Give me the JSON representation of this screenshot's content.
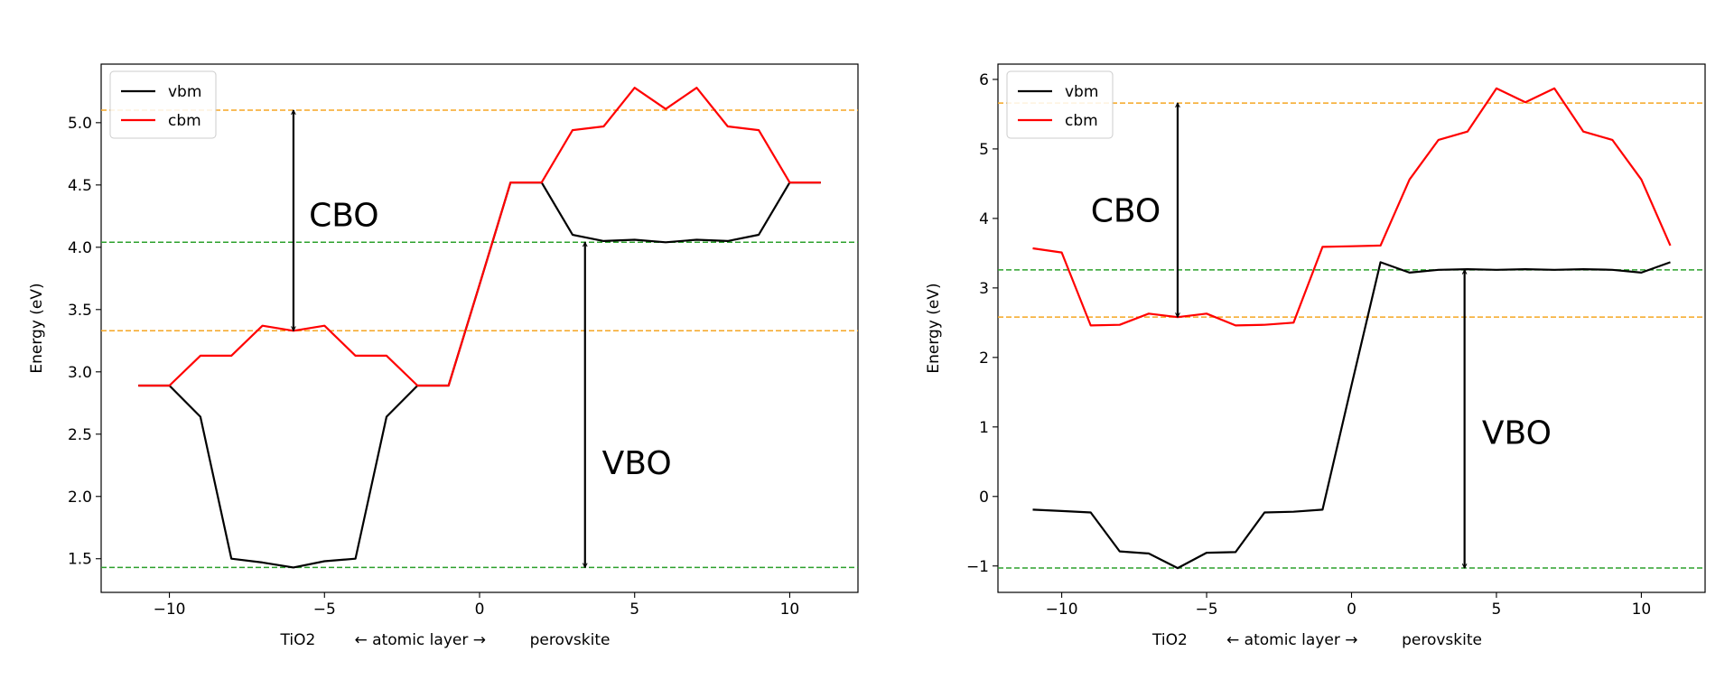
{
  "chart_data": [
    {
      "type": "line",
      "title": "",
      "xlabel": "TiO2        ← atomic layer →         perovskite",
      "ylabel": "Energy (eV)",
      "xlim": [
        -12.2,
        12.2
      ],
      "ylim": [
        1.23,
        5.47
      ],
      "xticks": [
        -10,
        -5,
        0,
        5,
        10
      ],
      "xtick_labels": [
        "−10",
        "−5",
        "0",
        "5",
        "10"
      ],
      "yticks": [
        1.5,
        2.0,
        2.5,
        3.0,
        3.5,
        4.0,
        4.5,
        5.0
      ],
      "ytick_labels": [
        "1.5",
        "2.0",
        "2.5",
        "3.0",
        "3.5",
        "4.0",
        "4.5",
        "5.0"
      ],
      "grid": false,
      "legend": "top-left",
      "x": [
        -11,
        -10,
        -9,
        -8,
        -7,
        -6,
        -5,
        -4,
        -3,
        -2,
        -1,
        0,
        1,
        2,
        3,
        4,
        5,
        6,
        7,
        8,
        9,
        10,
        11
      ],
      "series": [
        {
          "name": "vbm",
          "color": "#000000",
          "values": [
            2.89,
            2.89,
            2.64,
            1.5,
            1.47,
            1.43,
            1.48,
            1.5,
            2.64,
            2.89,
            2.89,
            3.7,
            4.52,
            4.52,
            4.1,
            4.05,
            4.06,
            4.04,
            4.06,
            4.05,
            4.1,
            4.52,
            4.52
          ]
        },
        {
          "name": "cbm",
          "color": "#ff0000",
          "values": [
            2.89,
            2.89,
            3.13,
            3.13,
            3.37,
            3.33,
            3.37,
            3.13,
            3.13,
            2.89,
            2.89,
            3.7,
            4.52,
            4.52,
            4.94,
            4.97,
            5.28,
            5.11,
            5.28,
            4.97,
            4.94,
            4.52,
            4.52
          ]
        }
      ],
      "hlines": [
        {
          "y": 5.1,
          "color": "#f5a623"
        },
        {
          "y": 3.33,
          "color": "#f5a623"
        },
        {
          "y": 4.04,
          "color": "#2ca02c"
        },
        {
          "y": 1.43,
          "color": "#2ca02c"
        }
      ],
      "arrows": [
        {
          "x": -6,
          "y1": 3.33,
          "y2": 5.1
        },
        {
          "x": 3.4,
          "y1": 1.43,
          "y2": 4.04
        }
      ],
      "annotations": [
        {
          "text": "CBO",
          "x": -5.5,
          "y": 4.17
        },
        {
          "text": "VBO",
          "x": 3.95,
          "y": 2.18
        }
      ]
    },
    {
      "type": "line",
      "title": "",
      "xlabel": "TiO2        ← atomic layer →         perovskite",
      "ylabel": "Energy (eV)",
      "xlim": [
        -12.2,
        12.2
      ],
      "ylim": [
        -1.38,
        6.22
      ],
      "xticks": [
        -10,
        -5,
        0,
        5,
        10
      ],
      "xtick_labels": [
        "−10",
        "−5",
        "0",
        "5",
        "10"
      ],
      "yticks": [
        -1,
        0,
        1,
        2,
        3,
        4,
        5,
        6
      ],
      "ytick_labels": [
        "−1",
        "0",
        "1",
        "2",
        "3",
        "4",
        "5",
        "6"
      ],
      "grid": false,
      "legend": "top-left",
      "x": [
        -11,
        -10,
        -9,
        -8,
        -7,
        -6,
        -5,
        -4,
        -3,
        -2,
        -1,
        0,
        1,
        2,
        3,
        4,
        5,
        6,
        7,
        8,
        9,
        10,
        11
      ],
      "series": [
        {
          "name": "vbm",
          "color": "#000000",
          "values": [
            -0.19,
            -0.21,
            -0.23,
            -0.79,
            -0.82,
            -1.03,
            -0.81,
            -0.8,
            -0.23,
            -0.22,
            -0.19,
            1.6,
            3.37,
            3.22,
            3.26,
            3.27,
            3.26,
            3.27,
            3.26,
            3.27,
            3.26,
            3.22,
            3.37
          ]
        },
        {
          "name": "cbm",
          "color": "#ff0000",
          "values": [
            3.57,
            3.51,
            2.46,
            2.47,
            2.63,
            2.58,
            2.63,
            2.46,
            2.47,
            2.5,
            3.59,
            3.6,
            3.61,
            4.56,
            5.13,
            5.25,
            5.87,
            5.67,
            5.87,
            5.25,
            5.13,
            4.56,
            3.61
          ]
        }
      ],
      "hlines": [
        {
          "y": 5.66,
          "color": "#f5a623"
        },
        {
          "y": 2.58,
          "color": "#f5a623"
        },
        {
          "y": 3.26,
          "color": "#2ca02c"
        },
        {
          "y": -1.03,
          "color": "#2ca02c"
        }
      ],
      "arrows": [
        {
          "x": -6,
          "y1": 2.58,
          "y2": 5.66
        },
        {
          "x": 3.9,
          "y1": -1.03,
          "y2": 3.26
        }
      ],
      "annotations": [
        {
          "text": "CBO",
          "x": -9.0,
          "y": 3.95
        },
        {
          "text": "VBO",
          "x": 4.5,
          "y": 0.76
        }
      ]
    }
  ]
}
